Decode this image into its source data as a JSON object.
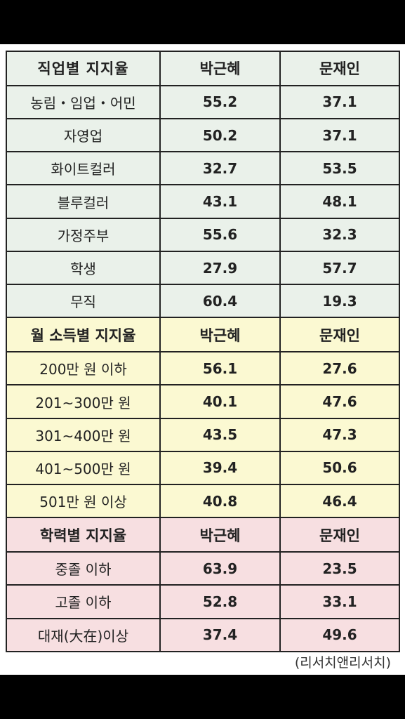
{
  "colors": {
    "occupation_bg": "#eaf1ea",
    "income_bg": "#fbf9d2",
    "education_bg": "#f7dfe1",
    "highlight": "#c4272b"
  },
  "sections": [
    {
      "header": [
        "직업별 지지율",
        "박근혜",
        "문재인"
      ],
      "rows": [
        {
          "label": "농림・임업・어민",
          "park": "55.2",
          "moon": "37.1",
          "highlight": "park"
        },
        {
          "label": "자영업",
          "park": "50.2",
          "moon": "37.1",
          "highlight": "park"
        },
        {
          "label": "화이트컬러",
          "park": "32.7",
          "moon": "53.5",
          "highlight": "moon"
        },
        {
          "label": "블루컬러",
          "park": "43.1",
          "moon": "48.1",
          "highlight": "moon"
        },
        {
          "label": "가정주부",
          "park": "55.6",
          "moon": "32.3",
          "highlight": "park"
        },
        {
          "label": "학생",
          "park": "27.9",
          "moon": "57.7",
          "highlight": "moon"
        },
        {
          "label": "무직",
          "park": "60.4",
          "moon": "19.3",
          "highlight": "park"
        }
      ]
    },
    {
      "header": [
        "월 소득별 지지율",
        "박근혜",
        "문재인"
      ],
      "rows": [
        {
          "label": "200만 원 이하",
          "park": "56.1",
          "moon": "27.6",
          "highlight": "park"
        },
        {
          "label": "201~300만 원",
          "park": "40.1",
          "moon": "47.6",
          "highlight": "moon"
        },
        {
          "label": "301~400만 원",
          "park": "43.5",
          "moon": "47.3",
          "highlight": "moon"
        },
        {
          "label": "401~500만 원",
          "park": "39.4",
          "moon": "50.6",
          "highlight": "moon"
        },
        {
          "label": "501만 원 이상",
          "park": "40.8",
          "moon": "46.4",
          "highlight": "moon"
        }
      ]
    },
    {
      "header": [
        "학력별 지지율",
        "박근혜",
        "문재인"
      ],
      "rows": [
        {
          "label": "중졸 이하",
          "park": "63.9",
          "moon": "23.5",
          "highlight": "park"
        },
        {
          "label": "고졸 이하",
          "park": "52.8",
          "moon": "33.1",
          "highlight": "park"
        },
        {
          "label": "대재(大在)이상",
          "park": "37.4",
          "moon": "49.6",
          "highlight": "moon"
        }
      ]
    }
  ],
  "source": "(리서치앤리서치)"
}
